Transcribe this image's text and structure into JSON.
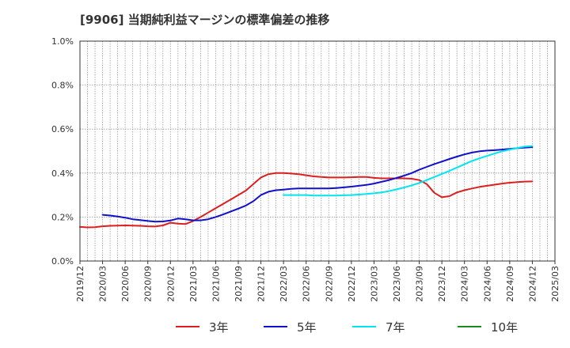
{
  "title": "[9906]  当期純利益マージンの標準偏差の推移",
  "chart_data": {
    "type": "line",
    "title": "[9906]  当期純利益マージンの標準偏差の推移",
    "xlabel": "",
    "ylabel": "",
    "ylim": [
      0,
      0.01
    ],
    "xlim": [
      "2019-12",
      "2025-03"
    ],
    "y_ticks": [
      "0.0%",
      "0.2%",
      "0.4%",
      "0.6%",
      "0.8%",
      "1.0%"
    ],
    "y_tick_values": [
      0,
      0.002,
      0.004,
      0.006,
      0.008,
      0.01
    ],
    "x_ticks": [
      "2019/12",
      "2020/03",
      "2020/06",
      "2020/09",
      "2020/12",
      "2021/03",
      "2021/06",
      "2021/09",
      "2021/12",
      "2022/03",
      "2022/06",
      "2022/09",
      "2022/12",
      "2023/03",
      "2023/06",
      "2023/09",
      "2023/12",
      "2024/03",
      "2024/06",
      "2024/09",
      "2024/12",
      "2025/03"
    ],
    "grid": true,
    "legend_position": "bottom",
    "series": [
      {
        "name": "3年",
        "color": "#dd1f1f",
        "x": [
          "2019-12",
          "2020-01",
          "2020-02",
          "2020-03",
          "2020-04",
          "2020-05",
          "2020-06",
          "2020-07",
          "2020-08",
          "2020-09",
          "2020-10",
          "2020-11",
          "2020-12",
          "2021-01",
          "2021-02",
          "2021-03",
          "2021-04",
          "2021-05",
          "2021-06",
          "2021-07",
          "2021-08",
          "2021-09",
          "2021-10",
          "2021-11",
          "2021-12",
          "2022-01",
          "2022-02",
          "2022-03",
          "2022-04",
          "2022-05",
          "2022-06",
          "2022-07",
          "2022-08",
          "2022-09",
          "2022-10",
          "2022-11",
          "2022-12",
          "2023-01",
          "2023-02",
          "2023-03",
          "2023-04",
          "2023-05",
          "2023-06",
          "2023-07",
          "2023-08",
          "2023-09",
          "2023-10",
          "2023-11",
          "2023-12",
          "2024-01",
          "2024-02",
          "2024-03",
          "2024-04",
          "2024-05",
          "2024-06",
          "2024-07",
          "2024-08",
          "2024-09",
          "2024-10",
          "2024-11",
          "2024-12"
        ],
        "y": [
          0.00155,
          0.00153,
          0.00154,
          0.00158,
          0.0016,
          0.00161,
          0.00162,
          0.00161,
          0.0016,
          0.00158,
          0.00157,
          0.00162,
          0.00174,
          0.0017,
          0.00168,
          0.00182,
          0.002,
          0.0022,
          0.0024,
          0.0026,
          0.0028,
          0.003,
          0.0032,
          0.0035,
          0.0038,
          0.00395,
          0.004,
          0.004,
          0.00398,
          0.00395,
          0.0039,
          0.00385,
          0.00382,
          0.0038,
          0.0038,
          0.0038,
          0.00381,
          0.00382,
          0.00382,
          0.00378,
          0.00376,
          0.00376,
          0.00376,
          0.00376,
          0.00374,
          0.00368,
          0.0035,
          0.0031,
          0.0029,
          0.00295,
          0.00312,
          0.00322,
          0.0033,
          0.00337,
          0.00342,
          0.00347,
          0.00352,
          0.00356,
          0.00359,
          0.00361,
          0.00362
        ]
      },
      {
        "name": "5年",
        "color": "#1010cc",
        "x": [
          "2020-03",
          "2020-04",
          "2020-05",
          "2020-06",
          "2020-07",
          "2020-08",
          "2020-09",
          "2020-10",
          "2020-11",
          "2020-12",
          "2021-01",
          "2021-02",
          "2021-03",
          "2021-04",
          "2021-05",
          "2021-06",
          "2021-07",
          "2021-08",
          "2021-09",
          "2021-10",
          "2021-11",
          "2021-12",
          "2022-01",
          "2022-02",
          "2022-03",
          "2022-04",
          "2022-05",
          "2022-06",
          "2022-07",
          "2022-08",
          "2022-09",
          "2022-10",
          "2022-11",
          "2022-12",
          "2023-01",
          "2023-02",
          "2023-03",
          "2023-04",
          "2023-05",
          "2023-06",
          "2023-07",
          "2023-08",
          "2023-09",
          "2023-10",
          "2023-11",
          "2023-12",
          "2024-01",
          "2024-02",
          "2024-03",
          "2024-04",
          "2024-05",
          "2024-06",
          "2024-07",
          "2024-08",
          "2024-09",
          "2024-10",
          "2024-11",
          "2024-12"
        ],
        "y": [
          0.0021,
          0.00207,
          0.00202,
          0.00197,
          0.0019,
          0.00186,
          0.00182,
          0.00179,
          0.0018,
          0.00184,
          0.00193,
          0.0019,
          0.00185,
          0.00185,
          0.0019,
          0.002,
          0.00212,
          0.00225,
          0.00238,
          0.00252,
          0.00272,
          0.003,
          0.00315,
          0.00322,
          0.00325,
          0.00328,
          0.0033,
          0.0033,
          0.0033,
          0.0033,
          0.0033,
          0.00332,
          0.00335,
          0.00338,
          0.00342,
          0.00346,
          0.00352,
          0.0036,
          0.00368,
          0.00378,
          0.00388,
          0.004,
          0.00415,
          0.00428,
          0.00441,
          0.00452,
          0.00464,
          0.00475,
          0.00485,
          0.00493,
          0.00499,
          0.00502,
          0.00504,
          0.00507,
          0.0051,
          0.00513,
          0.00516,
          0.00518
        ]
      },
      {
        "name": "7年",
        "color": "#00e5ee",
        "x": [
          "2022-03",
          "2022-04",
          "2022-05",
          "2022-06",
          "2022-07",
          "2022-08",
          "2022-09",
          "2022-10",
          "2022-11",
          "2022-12",
          "2023-01",
          "2023-02",
          "2023-03",
          "2023-04",
          "2023-05",
          "2023-06",
          "2023-07",
          "2023-08",
          "2023-09",
          "2023-10",
          "2023-11",
          "2023-12",
          "2024-01",
          "2024-02",
          "2024-03",
          "2024-04",
          "2024-05",
          "2024-06",
          "2024-07",
          "2024-08",
          "2024-09",
          "2024-10",
          "2024-11",
          "2024-12"
        ],
        "y": [
          0.003,
          0.003,
          0.003,
          0.003,
          0.00298,
          0.00298,
          0.00298,
          0.00298,
          0.00299,
          0.003,
          0.00302,
          0.00305,
          0.00308,
          0.00312,
          0.00318,
          0.00326,
          0.00334,
          0.00344,
          0.00355,
          0.00368,
          0.00382,
          0.00396,
          0.0041,
          0.00425,
          0.0044,
          0.00455,
          0.00467,
          0.00478,
          0.00489,
          0.00499,
          0.00507,
          0.00514,
          0.0052,
          0.00523
        ]
      },
      {
        "name": "10年",
        "color": "#1a8c1a",
        "x": [],
        "y": []
      }
    ]
  },
  "colors": {
    "grid": "#999999",
    "axis": "#333333",
    "background": "#ffffff"
  }
}
